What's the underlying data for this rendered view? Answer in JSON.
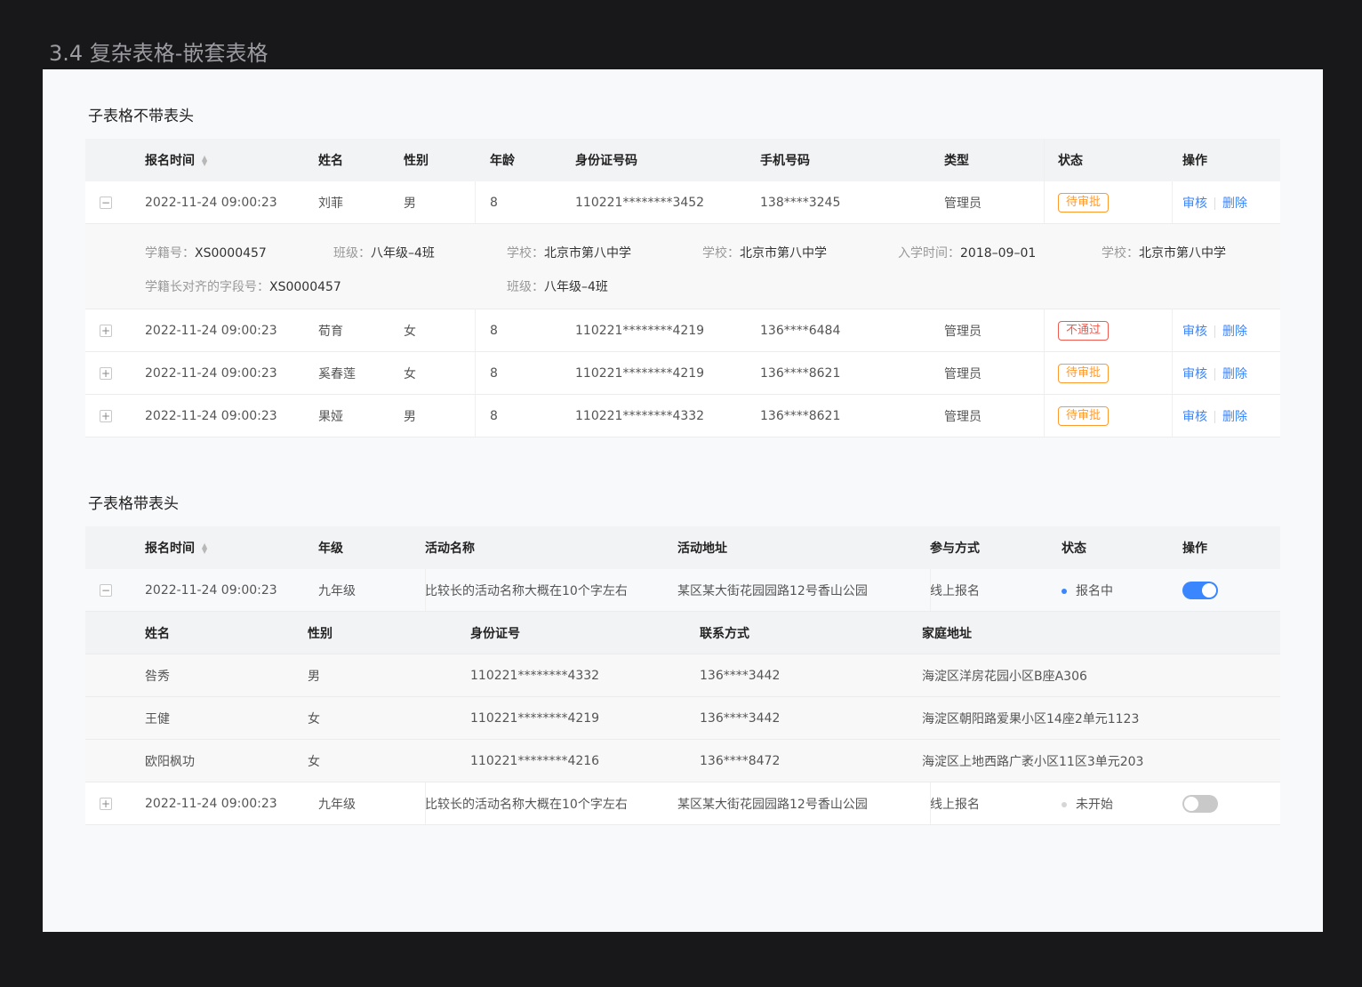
{
  "page_title": "3.4 复杂表格-嵌套表格",
  "colors": {
    "accent": "#3a86ff",
    "pending": "#ff9a2e",
    "rejected": "#f05a4f",
    "switch_off": "#c9c9c9"
  },
  "table1": {
    "title": "子表格不带表头",
    "headers": [
      "报名时间",
      "姓名",
      "性别",
      "年龄",
      "身份证号码",
      "手机号码",
      "类型",
      "状态",
      "操作"
    ],
    "actions": {
      "review": "审核",
      "delete": "删除"
    },
    "rows": [
      {
        "expanded": true,
        "time": "2022-11-24 09:00:23",
        "name": "刘菲",
        "gender": "男",
        "age": "8",
        "id": "110221********3452",
        "phone": "138****3245",
        "type": "管理员",
        "status": "待审批",
        "status_kind": "pending"
      },
      {
        "expanded": false,
        "time": "2022-11-24 09:00:23",
        "name": "荀育",
        "gender": "女",
        "age": "8",
        "id": "110221********4219",
        "phone": "136****6484",
        "type": "管理员",
        "status": "不通过",
        "status_kind": "rejected"
      },
      {
        "expanded": false,
        "time": "2022-11-24 09:00:23",
        "name": "奚春莲",
        "gender": "女",
        "age": "8",
        "id": "110221********4219",
        "phone": "136****8621",
        "type": "管理员",
        "status": "待审批",
        "status_kind": "pending"
      },
      {
        "expanded": false,
        "time": "2022-11-24 09:00:23",
        "name": "果娅",
        "gender": "男",
        "age": "8",
        "id": "110221********4332",
        "phone": "136****8621",
        "type": "管理员",
        "status": "待审批",
        "status_kind": "pending"
      }
    ],
    "detail": [
      {
        "k": "学籍号：",
        "v": "XS0000457"
      },
      {
        "k": "班级：",
        "v": "八年级–4班"
      },
      {
        "k": "学校：",
        "v": "北京市第八中学"
      },
      {
        "k": "学校：",
        "v": "北京市第八中学"
      },
      {
        "k": "入学时间：",
        "v": "2018–09–01"
      },
      {
        "k": "学校：",
        "v": "北京市第八中学"
      },
      {
        "k": "学籍长对齐的字段号：",
        "v": "XS0000457"
      },
      {
        "k": "班级：",
        "v": "八年级–4班"
      }
    ]
  },
  "table2": {
    "title": "子表格带表头",
    "headers": [
      "报名时间",
      "年级",
      "活动名称",
      "活动地址",
      "参与方式",
      "状态",
      "操作"
    ],
    "rows": [
      {
        "expanded": true,
        "time": "2022-11-24 09:00:23",
        "grade": "九年级",
        "activity": "比较长的活动名称大概在10个字左右",
        "address": "某区某大街花园园路12号香山公园",
        "mode": "线上报名",
        "status": "报名中",
        "enabled": true
      },
      {
        "expanded": false,
        "time": "2022-11-24 09:00:23",
        "grade": "九年级",
        "activity": "比较长的活动名称大概在10个字左右",
        "address": "某区某大街花园园路12号香山公园",
        "mode": "线上报名",
        "status": "未开始",
        "enabled": false
      }
    ],
    "sub_headers": [
      "姓名",
      "性别",
      "身份证号",
      "联系方式",
      "家庭地址"
    ],
    "sub_rows": [
      {
        "name": "咎秀",
        "gender": "男",
        "id": "110221********4332",
        "phone": "136****3442",
        "address": "海淀区洋房花园小区B座A306"
      },
      {
        "name": "王健",
        "gender": "女",
        "id": "110221********4219",
        "phone": "136****3442",
        "address": "海淀区朝阳路爱果小区14座2单元1123"
      },
      {
        "name": "欧阳枫功",
        "gender": "女",
        "id": "110221********4216",
        "phone": "136****8472",
        "address": "海淀区上地西路广袤小区11区3单元203"
      }
    ]
  }
}
